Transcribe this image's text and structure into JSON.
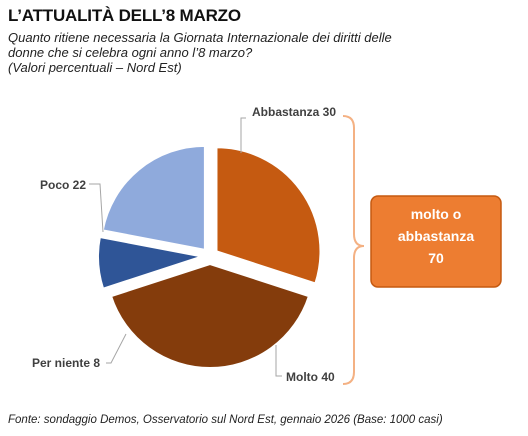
{
  "header": {
    "title": "L’ATTUALITÀ DELL’8 MARZO",
    "subtitle_line1": "Quanto ritiene necessaria la Giornata Internazionale dei diritti delle",
    "subtitle_line2": "donne che si celebra ogni anno l’8 marzo?",
    "subtitle_line3": "(Valori percentuali – Nord Est)"
  },
  "chart_data": {
    "type": "pie",
    "title": "L’ATTUALITÀ DELL’8 MARZO",
    "slices": [
      {
        "label": "Abbastanza",
        "value": 30,
        "color": "#c55a11"
      },
      {
        "label": "Molto",
        "value": 40,
        "color": "#843c0c"
      },
      {
        "label": "Per niente",
        "value": 8,
        "color": "#2f5597"
      },
      {
        "label": "Poco",
        "value": 22,
        "color": "#8faadc"
      }
    ],
    "annotation": {
      "lines": [
        "molto o",
        "abbastanza",
        "70"
      ],
      "color": "#ed7d31",
      "bracket_color": "#f4b183"
    }
  },
  "footer": {
    "source": "Fonte: sondaggio Demos, Osservatorio sul Nord Est, gennaio 2026 (Base: 1000 casi)"
  }
}
